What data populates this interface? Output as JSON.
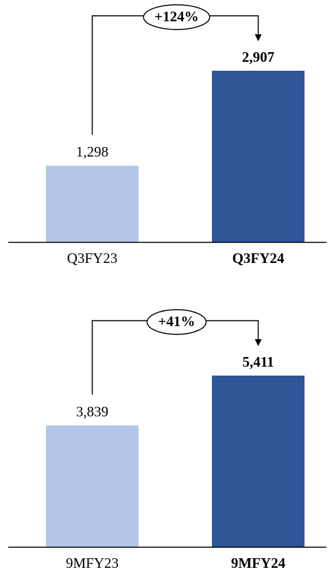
{
  "chart_data": [
    {
      "type": "bar",
      "categories": [
        "Q3FY23",
        "Q3FY24"
      ],
      "values": [
        1298,
        2907
      ],
      "value_labels": [
        "1,298",
        "2,907"
      ],
      "colors": [
        "#b4c6e7",
        "#2f5597"
      ],
      "annotation": "+124%"
    },
    {
      "type": "bar",
      "categories": [
        "9MFY23",
        "9MFY24"
      ],
      "values": [
        3839,
        5411
      ],
      "value_labels": [
        "3,839",
        "5,411"
      ],
      "colors": [
        "#b4c6e7",
        "#2f5597"
      ],
      "annotation": "+41%"
    }
  ]
}
